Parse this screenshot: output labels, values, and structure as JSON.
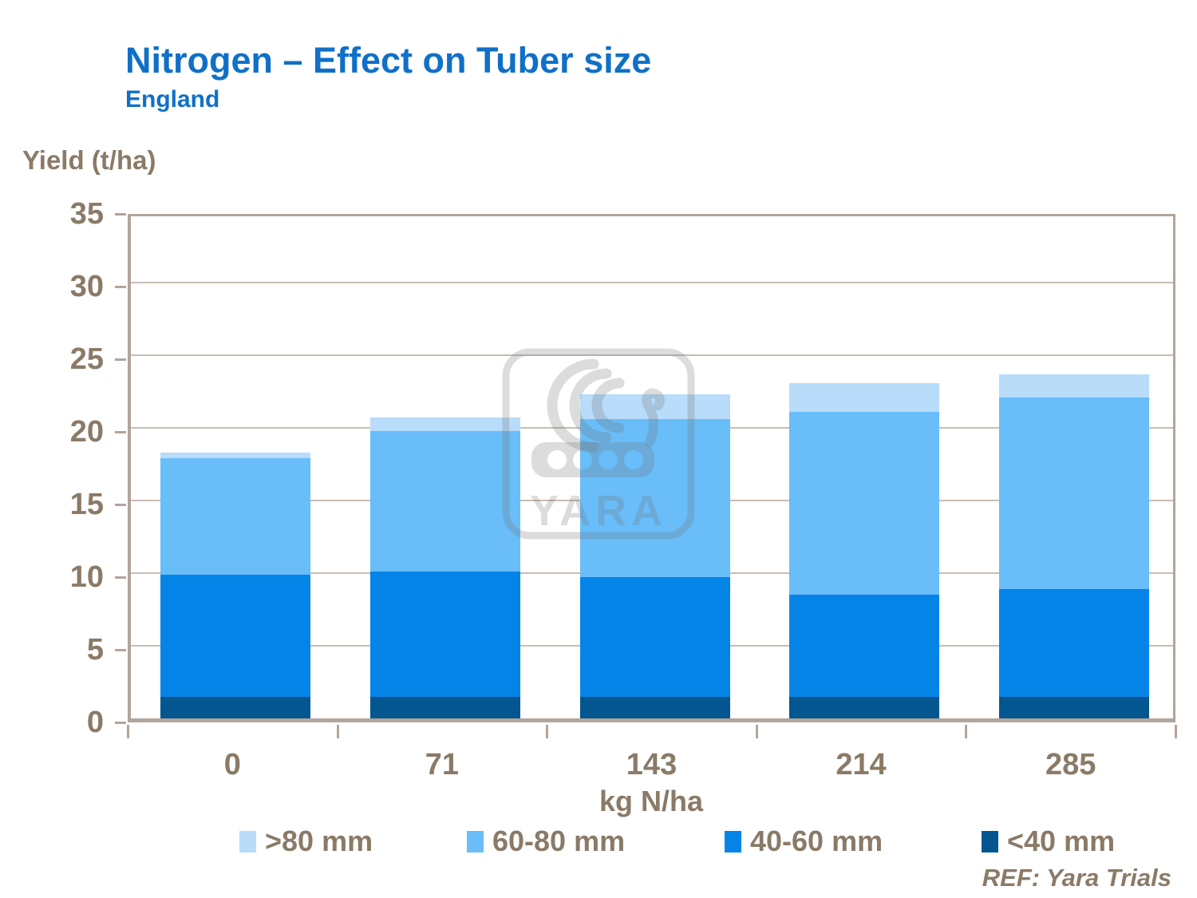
{
  "header": {
    "title": "Nitrogen – Effect on Tuber size",
    "subtitle": "England"
  },
  "chart_data": {
    "type": "bar",
    "stacked": true,
    "title": "Nitrogen – Effect on Tuber size",
    "subtitle": "England",
    "ylabel": "Yield (t/ha)",
    "xlabel": "kg N/ha",
    "categories": [
      "0",
      "71",
      "143",
      "214",
      "285"
    ],
    "series": [
      {
        "name": "<40 mm",
        "color": "#03568f",
        "values": [
          1.5,
          1.5,
          1.5,
          1.5,
          1.5
        ]
      },
      {
        "name": "40-60 mm",
        "color": "#0584e8",
        "values": [
          8.4,
          8.6,
          8.2,
          7.0,
          7.4
        ]
      },
      {
        "name": "60-80 mm",
        "color": "#69bdf9",
        "values": [
          8.0,
          9.7,
          10.9,
          12.6,
          13.2
        ]
      },
      {
        "name": ">80 mm",
        "color": "#b8dcfa",
        "values": [
          0.4,
          0.9,
          1.7,
          2.0,
          1.6
        ]
      }
    ],
    "totals": [
      18.3,
      20.7,
      22.3,
      23.1,
      23.7
    ],
    "ylim": [
      0,
      35
    ],
    "ytick_step": 5,
    "ytick_labels": [
      "0",
      "5",
      "10",
      "15",
      "20",
      "25",
      "30",
      "35"
    ],
    "grid": true,
    "legend_position": "bottom",
    "legend_order": [
      ">80 mm",
      "60-80 mm",
      "40-60 mm",
      "<40 mm"
    ]
  },
  "footer": {
    "reference": "REF: Yara Trials"
  },
  "watermark": {
    "text": "YARA"
  },
  "colors": {
    "title_blue": "#1070c8",
    "chart_text_brown": "#8a7a67",
    "axis_tan": "#b2a59b",
    "gridline_tan": "#c9bdb3"
  }
}
